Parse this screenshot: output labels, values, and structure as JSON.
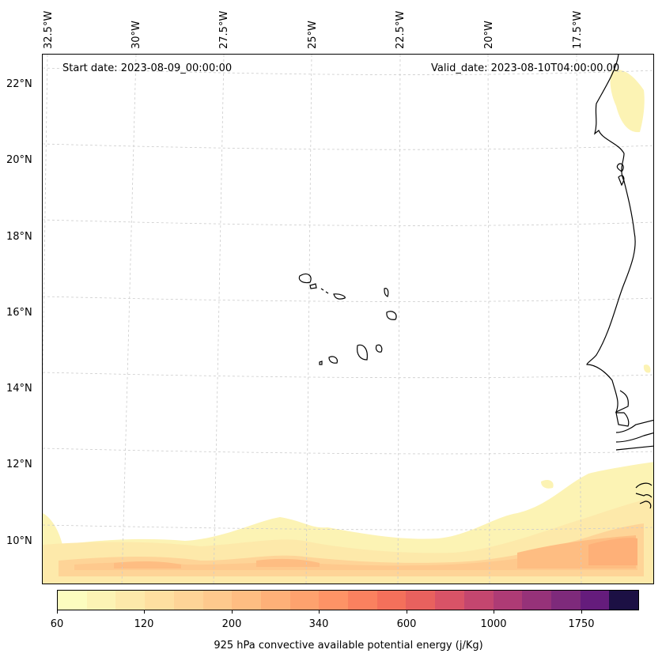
{
  "map": {
    "start_date_label": "Start date: 2023-08-09_00:00:00",
    "valid_date_label": "Valid_date: 2023-08-10T04:00:00.00",
    "longitude_labels": [
      "32.5°W",
      "30°W",
      "27.5°W",
      "25°W",
      "22.5°W",
      "20°W",
      "17.5°W"
    ],
    "latitude_labels": [
      "22°N",
      "20°N",
      "18°N",
      "16°N",
      "14°N",
      "12°N",
      "10°N"
    ],
    "coastline_color": "#000000",
    "gridline_color": "#cccccc"
  },
  "colorbar": {
    "tick_labels": [
      "60",
      "120",
      "200",
      "340",
      "600",
      "1000",
      "1750"
    ],
    "title": "925 hPa convective available potential energy (j/Kg)",
    "colors": [
      "#fcfdbf",
      "#fcf3b4",
      "#fde9aa",
      "#fedfa0",
      "#fed497",
      "#fec98d",
      "#febd82",
      "#feb078",
      "#fea26e",
      "#fe9366",
      "#fa815f",
      "#f4705b",
      "#e8615e",
      "#d95367",
      "#c4466f",
      "#ae3b75",
      "#963279",
      "#7e2a7b",
      "#651c7c",
      "#1c1044"
    ]
  }
}
